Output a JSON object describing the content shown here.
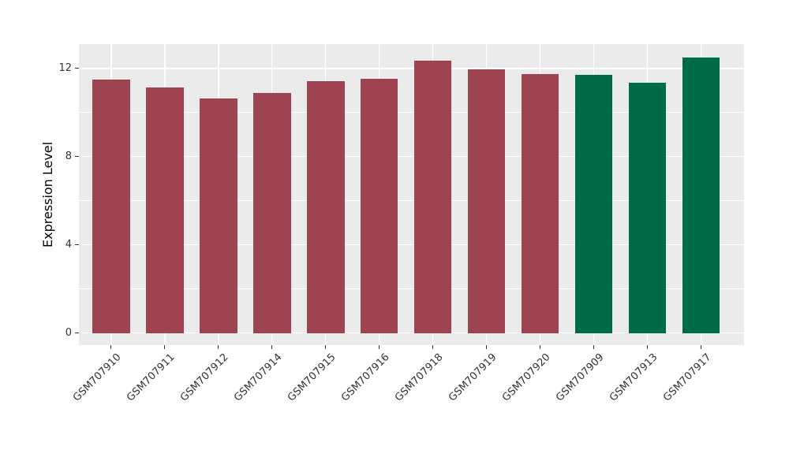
{
  "chart_data": {
    "type": "bar",
    "title": "",
    "xlabel": "",
    "ylabel": "Expression Level",
    "categories": [
      "GSM707910",
      "GSM707911",
      "GSM707912",
      "GSM707914",
      "GSM707915",
      "GSM707916",
      "GSM707918",
      "GSM707919",
      "GSM707920",
      "GSM707909",
      "GSM707913",
      "GSM707917"
    ],
    "values": [
      11.49,
      11.15,
      10.62,
      10.88,
      11.42,
      11.51,
      12.35,
      11.95,
      11.75,
      11.72,
      11.36,
      12.49
    ],
    "bar_colors": [
      "#9e4352",
      "#9e4352",
      "#9e4352",
      "#9e4352",
      "#9e4352",
      "#9e4352",
      "#9e4352",
      "#9e4352",
      "#9e4352",
      "#006b49",
      "#006b49",
      "#006b49"
    ],
    "group_colors": {
      "maroon_group": "#9e4352",
      "green_group": "#006b49"
    },
    "y_axis": {
      "tick_labels": [
        "0",
        "4",
        "8",
        "12"
      ],
      "ticks": [
        0,
        4,
        8,
        12
      ],
      "minor_ticks": [
        2,
        6,
        10
      ],
      "display_min": -0.55,
      "display_max": 13.1
    },
    "bar_width_fraction": 0.7,
    "grid": true,
    "legend": "none",
    "panel_background": "#ebebeb",
    "grid_color": "#ffffff"
  }
}
